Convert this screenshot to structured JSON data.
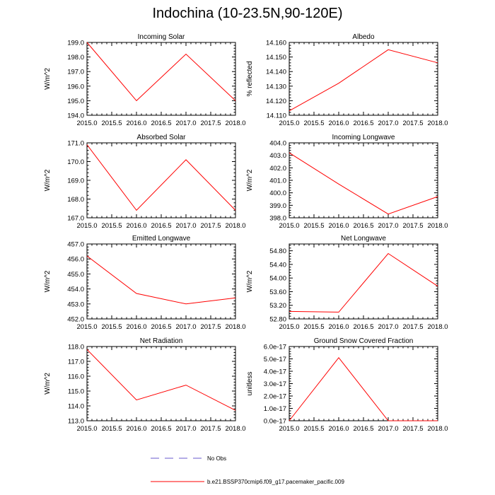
{
  "page": {
    "title": "Indochina (10-23.5N,90-120E)"
  },
  "legend": {
    "items": [
      {
        "label": "No Obs",
        "color": "#6a5acd",
        "dash": "dashed"
      },
      {
        "label": "b.e21.BSSP370cmip6.f09_g17.pacemaker_pacific.009",
        "color": "#ff0000",
        "dash": "solid"
      }
    ]
  },
  "colors": {
    "series": "#ff0000",
    "no_obs": "#6a5acd",
    "axes": "#000000"
  },
  "chart_data": [
    {
      "type": "line",
      "title": "Incoming Solar",
      "ylabel": "W/m^2",
      "x": [
        2015,
        2016,
        2017,
        2018
      ],
      "y": [
        199.0,
        195.0,
        198.2,
        195.0
      ],
      "xlim": [
        2015,
        2018
      ],
      "ylim": [
        194,
        199
      ],
      "xticks": [
        "2015.0",
        "2015.5",
        "2016.0",
        "2016.5",
        "2017.0",
        "2017.5",
        "2018.0"
      ],
      "yticks": [
        "194.0",
        "195.0",
        "196.0",
        "197.0",
        "198.0",
        "199.0"
      ],
      "ytick_values": [
        194,
        195,
        196,
        197,
        198,
        199
      ]
    },
    {
      "type": "line",
      "title": "Albedo",
      "ylabel": "% reflected",
      "x": [
        2015,
        2016,
        2017,
        2018
      ],
      "y": [
        14.113,
        14.132,
        14.155,
        14.146
      ],
      "xlim": [
        2015,
        2018
      ],
      "ylim": [
        14.11,
        14.16
      ],
      "xticks": [
        "2015.0",
        "2015.5",
        "2016.0",
        "2016.5",
        "2017.0",
        "2017.5",
        "2018.0"
      ],
      "yticks": [
        "14.110",
        "14.120",
        "14.130",
        "14.140",
        "14.150",
        "14.160"
      ],
      "ytick_values": [
        14.11,
        14.12,
        14.13,
        14.14,
        14.15,
        14.16
      ]
    },
    {
      "type": "line",
      "title": "Absorbed Solar",
      "ylabel": "W/m^2",
      "x": [
        2015,
        2016,
        2017,
        2018
      ],
      "y": [
        170.9,
        167.4,
        170.1,
        167.4
      ],
      "xlim": [
        2015,
        2018
      ],
      "ylim": [
        167,
        171
      ],
      "xticks": [
        "2015.0",
        "2015.5",
        "2016.0",
        "2016.5",
        "2017.0",
        "2017.5",
        "2018.0"
      ],
      "yticks": [
        "167.0",
        "168.0",
        "169.0",
        "170.0",
        "171.0"
      ],
      "ytick_values": [
        167,
        168,
        169,
        170,
        171
      ]
    },
    {
      "type": "line",
      "title": "Incoming Longwave",
      "ylabel": "W/m^2",
      "x": [
        2015,
        2016,
        2017,
        2018
      ],
      "y": [
        403.2,
        400.7,
        398.3,
        399.7
      ],
      "xlim": [
        2015,
        2018
      ],
      "ylim": [
        398,
        404
      ],
      "xticks": [
        "2015.0",
        "2015.5",
        "2016.0",
        "2016.5",
        "2017.0",
        "2017.5",
        "2018.0"
      ],
      "yticks": [
        "398.0",
        "399.0",
        "400.0",
        "401.0",
        "402.0",
        "403.0",
        "404.0"
      ],
      "ytick_values": [
        398,
        399,
        400,
        401,
        402,
        403,
        404
      ]
    },
    {
      "type": "line",
      "title": "Emitted Longwave",
      "ylabel": "W/m^2",
      "x": [
        2015,
        2016,
        2017,
        2018
      ],
      "y": [
        456.2,
        453.7,
        453.0,
        453.4
      ],
      "xlim": [
        2015,
        2018
      ],
      "ylim": [
        452,
        457
      ],
      "xticks": [
        "2015.0",
        "2015.5",
        "2016.0",
        "2016.5",
        "2017.0",
        "2017.5",
        "2018.0"
      ],
      "yticks": [
        "452.0",
        "453.0",
        "454.0",
        "455.0",
        "456.0",
        "457.0"
      ],
      "ytick_values": [
        452,
        453,
        454,
        455,
        456,
        457
      ]
    },
    {
      "type": "line",
      "title": "Net Longwave",
      "ylabel": "W/m^2",
      "x": [
        2015,
        2016,
        2017,
        2018
      ],
      "y": [
        53.02,
        53.0,
        54.72,
        53.76
      ],
      "xlim": [
        2015,
        2018
      ],
      "ylim": [
        52.8,
        55.0
      ],
      "xticks": [
        "2015.0",
        "2015.5",
        "2016.0",
        "2016.5",
        "2017.0",
        "2017.5",
        "2018.0"
      ],
      "yticks": [
        "52.80",
        "53.20",
        "53.60",
        "54.00",
        "54.40",
        "54.80"
      ],
      "ytick_values": [
        52.8,
        53.2,
        53.6,
        54.0,
        54.4,
        54.8
      ]
    },
    {
      "type": "line",
      "title": "Net Radiation",
      "ylabel": "W/m^2",
      "x": [
        2015,
        2016,
        2017,
        2018
      ],
      "y": [
        117.8,
        114.4,
        115.4,
        113.7
      ],
      "xlim": [
        2015,
        2018
      ],
      "ylim": [
        113,
        118
      ],
      "xticks": [
        "2015.0",
        "2015.5",
        "2016.0",
        "2016.5",
        "2017.0",
        "2017.5",
        "2018.0"
      ],
      "yticks": [
        "113.0",
        "114.0",
        "115.0",
        "116.0",
        "117.0",
        "118.0"
      ],
      "ytick_values": [
        113,
        114,
        115,
        116,
        117,
        118
      ]
    },
    {
      "type": "line",
      "title": "Ground Snow Covered Fraction",
      "ylabel": "unitless",
      "x": [
        2015,
        2016,
        2017,
        2018
      ],
      "y": [
        0.0,
        5.1e-17,
        0.0,
        0.0
      ],
      "xlim": [
        2015,
        2018
      ],
      "ylim": [
        0,
        6e-17
      ],
      "xticks": [
        "2015.0",
        "2015.5",
        "2016.0",
        "2016.5",
        "2017.0",
        "2017.5",
        "2018.0"
      ],
      "yticks": [
        "0.0e-17",
        "1.0e-17",
        "2.0e-17",
        "3.0e-17",
        "4.0e-17",
        "5.0e-17",
        "6.0e-17"
      ],
      "ytick_values": [
        0,
        1e-17,
        2e-17,
        3e-17,
        4e-17,
        5e-17,
        6e-17
      ]
    }
  ]
}
